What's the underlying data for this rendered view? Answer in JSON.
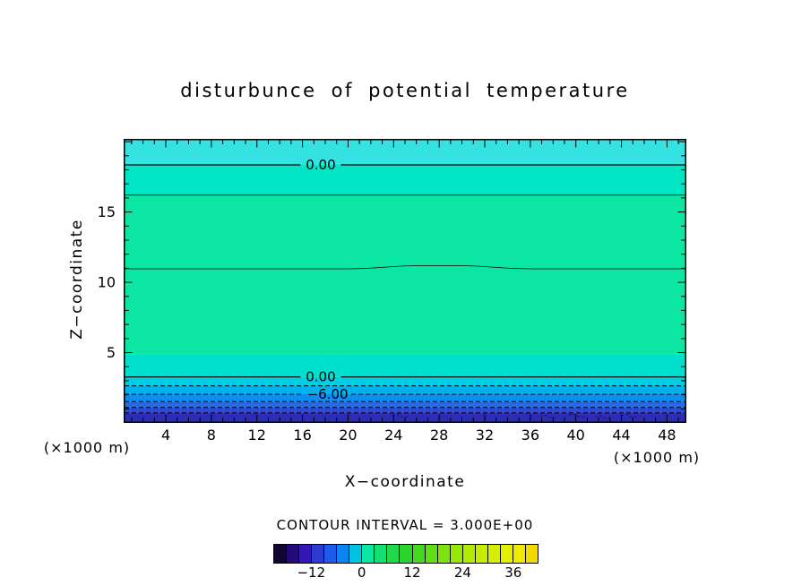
{
  "title": "disturbunce  of  potential  temperature",
  "labels": {
    "x_axis": "X−coordinate",
    "z_axis": "Z−coordinate",
    "x_unit_left": "(×1000 m)",
    "x_unit_right": "(×1000 m)",
    "contour_note": "CONTOUR INTERVAL = 3.000E+00"
  },
  "chart_data": {
    "type": "filled-contour",
    "title": "disturbunce of potential temperature",
    "xlabel": "X-coordinate",
    "ylabel": "Z-coordinate",
    "axis_units": "×1000 m",
    "contour_interval": "3.000E+00",
    "xlim": [
      0.3,
      49.7
    ],
    "ylim": [
      0,
      20.2
    ],
    "x_ticks": [
      4,
      8,
      12,
      16,
      20,
      24,
      28,
      32,
      36,
      40,
      44,
      48
    ],
    "x_minor_step": 1,
    "y_ticks_major": [
      5,
      10,
      15,
      20
    ],
    "y_ticks_labeled": [
      5,
      10,
      15
    ],
    "y_minor_step": 1,
    "fill_bands": [
      {
        "z_from": 0.0,
        "z_to": 0.72,
        "color": "#2B2DB4"
      },
      {
        "z_from": 0.72,
        "z_to": 1.1,
        "color": "#2E49DC"
      },
      {
        "z_from": 1.1,
        "z_to": 1.52,
        "color": "#1F6CEE"
      },
      {
        "z_from": 1.52,
        "z_to": 2.04,
        "color": "#0B8EF2"
      },
      {
        "z_from": 2.04,
        "z_to": 2.64,
        "color": "#00B2EE"
      },
      {
        "z_from": 2.64,
        "z_to": 3.27,
        "color": "#00CFE2"
      },
      {
        "z_from": 3.27,
        "z_to": 4.9,
        "color": "#00E0CF"
      },
      {
        "z_from": 4.9,
        "z_to": 16.2,
        "color": "#0CE6A3"
      },
      {
        "z_from": 16.2,
        "z_to": 18.35,
        "color": "#00E5C4"
      },
      {
        "z_from": 18.35,
        "z_to": 20.2,
        "color": "#35E2E2"
      }
    ],
    "contours": [
      {
        "z": 18.35,
        "style": "solid",
        "width": 1.2,
        "label": "0.00",
        "label_x": 17.6
      },
      {
        "z": 16.2,
        "style": "solid",
        "width": 0.75
      },
      {
        "z": 10.96,
        "style": "solid",
        "width": 0.75,
        "bump": {
          "from": 20,
          "to": 36,
          "rise": 3.5
        }
      },
      {
        "z": 3.27,
        "style": "solid",
        "width": 1.2,
        "label": "0.00",
        "label_x": 17.6
      },
      {
        "z": 2.64,
        "style": "dashed",
        "width": 1
      },
      {
        "z": 2.04,
        "style": "dashed",
        "width": 1,
        "label": "−6.00",
        "label_x": 18.2
      },
      {
        "z": 1.52,
        "style": "dashed",
        "width": 1
      },
      {
        "z": 1.1,
        "style": "dashed",
        "width": 1
      },
      {
        "z": 0.72,
        "style": "dashed",
        "width": 1
      }
    ],
    "noise_spots": [
      {
        "x": 24.6,
        "z": 0.5
      },
      {
        "x": 37.6,
        "z": 0.45
      },
      {
        "x": 40.1,
        "z": 0.52
      },
      {
        "x": 42.4,
        "z": 0.42
      },
      {
        "x": 44.7,
        "z": 0.5
      }
    ],
    "colorbar": {
      "min": -21,
      "max": 42,
      "step": 3,
      "colors": [
        "#100533",
        "#250B78",
        "#3318B4",
        "#2E3BD2",
        "#1E5AEA",
        "#0B86F0",
        "#00C4E2",
        "#0CE6A3",
        "#12E070",
        "#1FD94A",
        "#2BD32B",
        "#45D81F",
        "#60DE16",
        "#7CE30E",
        "#98E807",
        "#B2EB00",
        "#C6EC00",
        "#D6EE00",
        "#E3F000",
        "#EDEA00",
        "#F2DA00"
      ],
      "tick_labels": [
        {
          "value": -12,
          "text": "−12"
        },
        {
          "value": 0,
          "text": "0"
        },
        {
          "value": 12,
          "text": "12"
        },
        {
          "value": 24,
          "text": "24"
        },
        {
          "value": 36,
          "text": "36"
        }
      ]
    }
  }
}
